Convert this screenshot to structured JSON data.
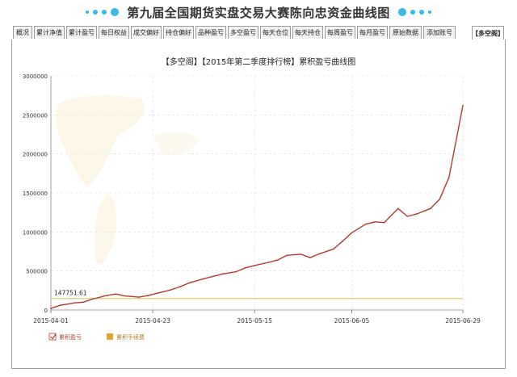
{
  "page_title": "第九届全国期货实盘交易大赛陈向忠资金曲线图",
  "tabs": [
    {
      "label": "概况"
    },
    {
      "label": "累计净值"
    },
    {
      "label": "累计盈亏"
    },
    {
      "label": "每日权益"
    },
    {
      "label": "成交偏好"
    },
    {
      "label": "持仓偏好"
    },
    {
      "label": "品种盈亏"
    },
    {
      "label": "多空盈亏"
    },
    {
      "label": "每天仓位"
    },
    {
      "label": "每天持仓"
    },
    {
      "label": "每周盈亏"
    },
    {
      "label": "每月盈亏"
    },
    {
      "label": "原始数据"
    },
    {
      "label": "添加账号"
    },
    {
      "label": "【多空阁】"
    }
  ],
  "colors": {
    "accent": "#39b8e6",
    "line": "#b03a2e",
    "fee_line": "#d4cf6a",
    "fee_legend": "#e8a33a"
  },
  "chart_data": {
    "type": "line",
    "title": "【多空阁】【2015年第二季度排行榜】累积盈亏曲线图",
    "xlabel": "",
    "ylabel": "",
    "x_ticks": [
      "2015-04-01",
      "2015-04-23",
      "2015-05-15",
      "2015-06-05",
      "2015-06-29"
    ],
    "y_ticks": [
      "0",
      "500000",
      "1000000",
      "1500000",
      "2000000",
      "2500000",
      "3000000"
    ],
    "ylim": [
      0,
      3000000
    ],
    "x": [
      "2015-04-01",
      "2015-04-03",
      "2015-04-06",
      "2015-04-08",
      "2015-04-10",
      "2015-04-13",
      "2015-04-15",
      "2015-04-17",
      "2015-04-20",
      "2015-04-22",
      "2015-04-24",
      "2015-04-27",
      "2015-04-29",
      "2015-05-01",
      "2015-05-04",
      "2015-05-06",
      "2015-05-08",
      "2015-05-11",
      "2015-05-13",
      "2015-05-15",
      "2015-05-18",
      "2015-05-20",
      "2015-05-22",
      "2015-05-25",
      "2015-05-27",
      "2015-05-29",
      "2015-06-01",
      "2015-06-03",
      "2015-06-05",
      "2015-06-08",
      "2015-06-10",
      "2015-06-12",
      "2015-06-15",
      "2015-06-17",
      "2015-06-19",
      "2015-06-22",
      "2015-06-24",
      "2015-06-26",
      "2015-06-29"
    ],
    "series": [
      {
        "name": "累积盈亏",
        "color": "#b03a2e",
        "values": [
          20000,
          60000,
          90000,
          100000,
          140000,
          185000,
          205000,
          180000,
          165000,
          185000,
          215000,
          260000,
          300000,
          350000,
          400000,
          430000,
          460000,
          490000,
          540000,
          570000,
          610000,
          640000,
          700000,
          715000,
          670000,
          720000,
          780000,
          880000,
          990000,
          1100000,
          1130000,
          1120000,
          1300000,
          1200000,
          1230000,
          1300000,
          1420000,
          1700000,
          2620000
        ]
      },
      {
        "name": "累积手续费",
        "color": "#e8a33a",
        "values": [
          147751.61,
          147751.61,
          147751.61,
          147751.61,
          147751.61,
          147751.61,
          147751.61,
          147751.61,
          147751.61,
          147751.61,
          147751.61,
          147751.61,
          147751.61,
          147751.61,
          147751.61,
          147751.61,
          147751.61,
          147751.61,
          147751.61,
          147751.61,
          147751.61,
          147751.61,
          147751.61,
          147751.61,
          147751.61,
          147751.61,
          147751.61,
          147751.61,
          147751.61,
          147751.61,
          147751.61,
          147751.61,
          147751.61,
          147751.61,
          147751.61,
          147751.61,
          147751.61,
          147751.61,
          147751.61
        ]
      }
    ],
    "annotations": [
      {
        "text": "147751.61",
        "value": 147751.61
      }
    ],
    "grid": true,
    "legend_position": "bottom-left"
  }
}
